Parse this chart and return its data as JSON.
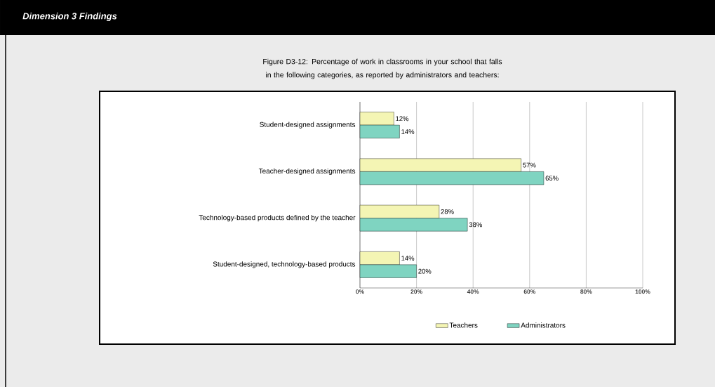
{
  "chart_data": {
    "type": "bar",
    "orientation": "horizontal",
    "title": "Dimension 3 Findings",
    "subtitle": "Figure D3-12: Percentage of work in classrooms in your school that falls in the following categories, as reported by administrators and teachers:",
    "categories": [
      "Student-designed assignments",
      "Teacher-designed assignments",
      "Technology-based products defined by the teacher",
      "Student-designed, technology-based products"
    ],
    "series": [
      {
        "name": "Teachers",
        "color": "#f4f5b4",
        "values": [
          12,
          57,
          28,
          14
        ],
        "value_labels": [
          "12%",
          "57%",
          "28%",
          "14%"
        ]
      },
      {
        "name": "Administrators",
        "color": "#7fd4c1",
        "values": [
          14,
          65,
          38,
          20
        ],
        "value_labels": [
          "14%",
          "65%",
          "38%",
          "20%"
        ]
      }
    ],
    "xlim": [
      0,
      100
    ],
    "xticks": [
      {
        "value": 0,
        "label": "0%"
      },
      {
        "value": 20,
        "label": "20%"
      },
      {
        "value": 40,
        "label": "40%"
      },
      {
        "value": 60,
        "label": "60%"
      },
      {
        "value": 80,
        "label": "80%"
      },
      {
        "value": 100,
        "label": "100%"
      }
    ],
    "grid": "x",
    "legend": "bottom"
  }
}
